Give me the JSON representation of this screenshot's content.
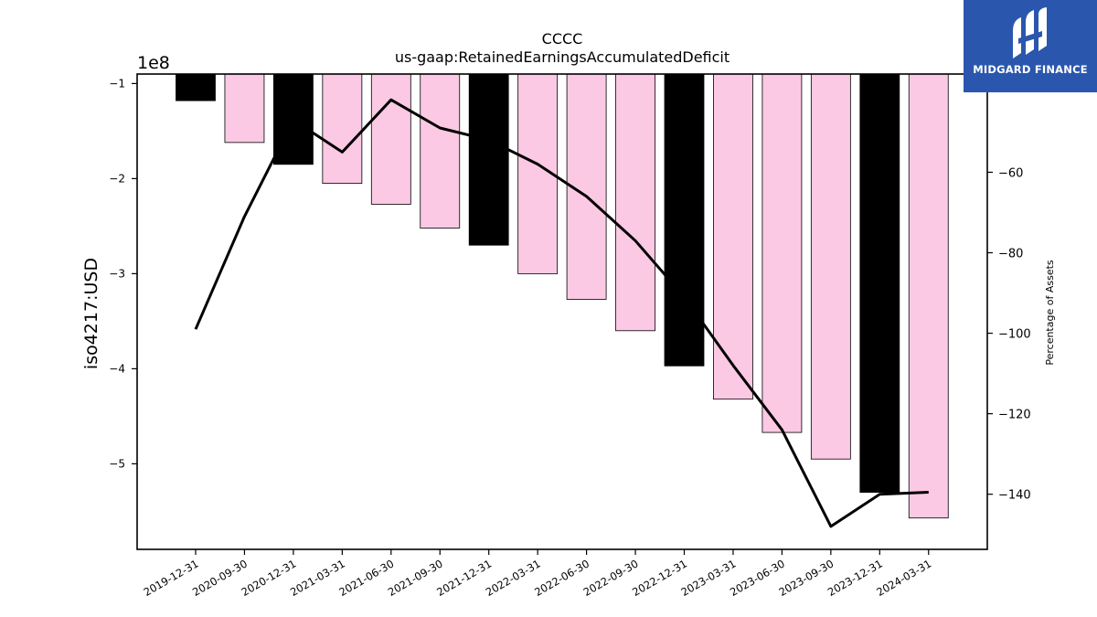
{
  "logo": {
    "text": "MIDGARD FINANCE"
  },
  "chart_data": {
    "type": "bar",
    "title": "CCCC",
    "subtitle": "us-gaap:RetainedEarningsAccumulatedDeficit",
    "ylabel": "iso4217:USD",
    "y_offset_label": "1e8",
    "y2label": "Percentage of Assets",
    "categories": [
      "2019-12-31",
      "2020-09-30",
      "2020-12-31",
      "2021-03-31",
      "2021-06-30",
      "2021-09-30",
      "2021-12-31",
      "2022-03-31",
      "2022-06-30",
      "2022-09-30",
      "2022-12-31",
      "2023-03-31",
      "2023-06-30",
      "2023-09-30",
      "2023-12-31",
      "2024-03-31"
    ],
    "bar_colors": {
      "annual": "#000000",
      "quarterly": "#fbc9e3"
    },
    "bar_types": [
      "annual",
      "quarterly",
      "annual",
      "quarterly",
      "quarterly",
      "quarterly",
      "annual",
      "quarterly",
      "quarterly",
      "quarterly",
      "annual",
      "quarterly",
      "quarterly",
      "quarterly",
      "annual",
      "quarterly"
    ],
    "series": [
      {
        "name": "",
        "axis": "left",
        "values": [
          -118000000,
          -162000000,
          -185000000,
          -205000000,
          -227000000,
          -252000000,
          -270000000,
          -300000000,
          -327000000,
          -360000000,
          -397000000,
          -432000000,
          -467000000,
          -495000000,
          -530000000,
          -557000000
        ]
      },
      {
        "name": "",
        "axis": "right",
        "type": "line",
        "color": "#000000",
        "values": [
          -99,
          -71,
          -47,
          -55,
          -42,
          -49,
          -52,
          -58,
          -66,
          -77,
          -91,
          -108,
          -124,
          -148,
          -140,
          -139.5
        ]
      }
    ],
    "ylim": [
      -590000000,
      -90000000
    ],
    "yticks": [
      -100000000,
      -200000000,
      -300000000,
      -400000000,
      -500000000
    ],
    "ytick_labels": [
      "−1",
      "−2",
      "−3",
      "−4",
      "−5"
    ],
    "y2lim": [
      -153.7,
      -35.6
    ],
    "y2ticks": [
      -60,
      -80,
      -100,
      -120,
      -140
    ],
    "y2tick_labels": [
      "−60",
      "−80",
      "−100",
      "−120",
      "−140"
    ],
    "grid": false,
    "legend": "none"
  }
}
